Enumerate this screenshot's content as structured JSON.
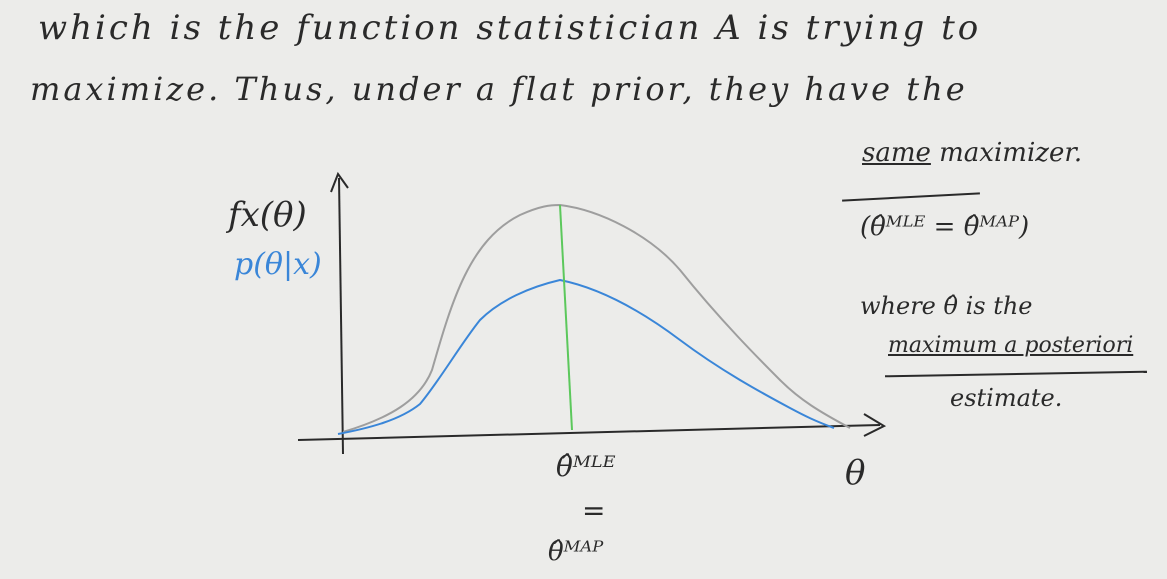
{
  "notes": {
    "line1": "which is the function statistician A is trying to",
    "line2": "maximize. Thus, under a flat prior, they have the",
    "same_word": "same",
    "maximizer_word": "maximizer.",
    "mle_map_equation": "(θ̂ᴹᴸᴱ = θ̂ᴹᴬᴾ)",
    "where_line": "where θ̂ is the",
    "map_phrase": "maximum a posteriori",
    "estimate_word": "estimate."
  },
  "axes": {
    "y_label_black": "f𝑥(θ)",
    "y_label_blue": "p(θ|x)",
    "x_label": "θ",
    "tick_label_top": "θ̂ᴹᴸᴱ",
    "tick_equals": "=",
    "tick_label_bottom": "θ̂ᴹᴬᴾ"
  },
  "colors": {
    "ink": "#2a2a2a",
    "likelihood_curve": "#9e9e9e",
    "posterior_curve": "#3a86d8",
    "peak_line": "#5cc85c"
  }
}
